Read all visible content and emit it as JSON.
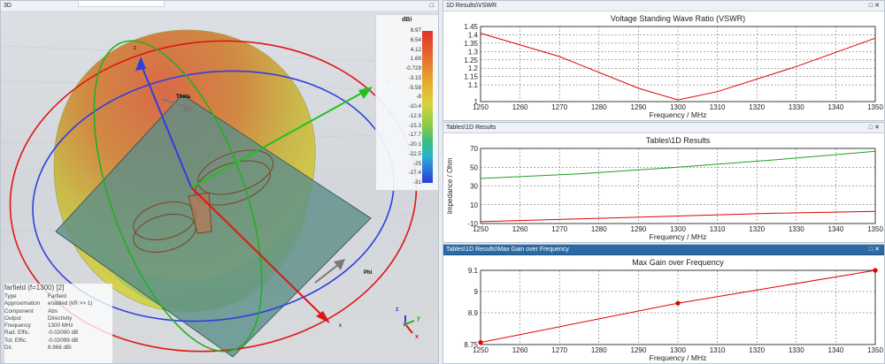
{
  "view3d": {
    "title": "3D",
    "axis_labels": {
      "z": "z",
      "y": "y",
      "x": "x",
      "theta": "Theta",
      "phi": "Phi"
    },
    "colorbar": {
      "unit": "dBi",
      "labels": [
        "8.97",
        "6.54",
        "4.12",
        "1.69",
        "-0.729",
        "-3.15",
        "-5.58",
        "-8",
        "-10.4",
        "-12.9",
        "-15.3",
        "-17.7",
        "-20.1",
        "-22.5",
        "-25",
        "-27.4",
        "-31"
      ]
    },
    "info": {
      "title": "farfield (f=1300) [2]",
      "rows": [
        {
          "key": "Type",
          "value": "Farfield"
        },
        {
          "key": "Approximation",
          "value": "enabled (kR >> 1)"
        },
        {
          "key": "Component",
          "value": "Abs"
        },
        {
          "key": "Output",
          "value": "Directivity"
        },
        {
          "key": "Frequency",
          "value": "1300 MHz"
        },
        {
          "key": "Rad. Effic.",
          "value": "-0.02090 dB"
        },
        {
          "key": "Tot. Effic.",
          "value": "-0.02099 dB"
        },
        {
          "key": "Dir.",
          "value": "8.968 dBi"
        }
      ]
    }
  },
  "panels": [
    {
      "window_title": "1D Results\\VSWR",
      "active": false
    },
    {
      "window_title": "Tables\\1D Results",
      "active": false
    },
    {
      "window_title": "Tables\\1D Results\\Max Gain over Frequency",
      "active": true
    }
  ],
  "chart_data": [
    {
      "type": "line",
      "title": "Voltage Standing Wave Ratio (VSWR)",
      "xlabel": "Frequency / MHz",
      "ylabel": "",
      "xlim": [
        1250,
        1350
      ],
      "ylim": [
        1,
        1.45
      ],
      "xticks": [
        "1250",
        "1260",
        "1270",
        "1280",
        "1290",
        "1300",
        "1310",
        "1320",
        "1330",
        "1340",
        "1350"
      ],
      "yticks": [
        "1",
        "1.1",
        "1.15",
        "1.2",
        "1.25",
        "1.3",
        "1.35",
        "1.4",
        "1.45"
      ],
      "grid": true,
      "series": [
        {
          "color": "#e00000",
          "x": [
            1250,
            1270,
            1290,
            1300,
            1310,
            1330,
            1350
          ],
          "values": [
            1.41,
            1.27,
            1.08,
            1.01,
            1.06,
            1.21,
            1.38
          ],
          "markers": false
        }
      ]
    },
    {
      "type": "line",
      "title": "Tables\\1D Results",
      "xlabel": "Frequency / MHz",
      "ylabel": "Impedance / Ohm",
      "xlim": [
        1250,
        1350
      ],
      "ylim": [
        -10,
        70
      ],
      "xticks": [
        "1250",
        "1260",
        "1270",
        "1280",
        "1290",
        "1300",
        "1310",
        "1320",
        "1330",
        "1340",
        "1350"
      ],
      "yticks": [
        "-10",
        "10",
        "30",
        "50",
        "70"
      ],
      "grid": true,
      "series": [
        {
          "color": "#20a020",
          "x": [
            1250,
            1275,
            1300,
            1325,
            1350
          ],
          "values": [
            38,
            43,
            50,
            58,
            67
          ],
          "markers": false
        },
        {
          "color": "#e00000",
          "x": [
            1250,
            1275,
            1300,
            1325,
            1350
          ],
          "values": [
            -8,
            -5,
            -2,
            1,
            3
          ],
          "markers": false
        }
      ]
    },
    {
      "type": "line",
      "title": "Max Gain over Frequency",
      "xlabel": "Frequency / MHz",
      "ylabel": "",
      "xlim": [
        1250,
        1350
      ],
      "ylim": [
        8.75,
        9.1
      ],
      "xticks": [
        "1250",
        "1260",
        "1270",
        "1280",
        "1290",
        "1300",
        "1310",
        "1320",
        "1330",
        "1340",
        "1350"
      ],
      "yticks": [
        "8.75",
        "8.9",
        "9",
        "9.1"
      ],
      "grid": true,
      "series": [
        {
          "color": "#e00000",
          "x": [
            1250,
            1300,
            1350
          ],
          "values": [
            8.76,
            8.945,
            9.1
          ],
          "markers": true
        }
      ]
    }
  ]
}
